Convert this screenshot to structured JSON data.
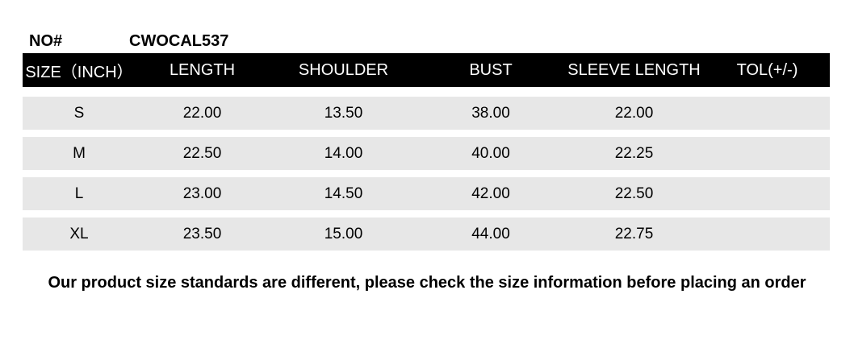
{
  "product": {
    "no_label": "NO#",
    "no_value": "CWOCAL537"
  },
  "table": {
    "columns": [
      "SIZE（INCH）",
      "LENGTH",
      "SHOULDER",
      "BUST",
      "SLEEVE LENGTH",
      "TOL(+/-)"
    ],
    "column_keys": [
      "size",
      "length",
      "shoulder",
      "bust",
      "sleeve_length",
      "tol"
    ],
    "rows": [
      {
        "size": "S",
        "length": "22.00",
        "shoulder": "13.50",
        "bust": "38.00",
        "sleeve_length": "22.00",
        "tol": ""
      },
      {
        "size": "M",
        "length": "22.50",
        "shoulder": "14.00",
        "bust": "40.00",
        "sleeve_length": "22.25",
        "tol": ""
      },
      {
        "size": "L",
        "length": "23.00",
        "shoulder": "14.50",
        "bust": "42.00",
        "sleeve_length": "22.50",
        "tol": ""
      },
      {
        "size": "XL",
        "length": "23.50",
        "shoulder": "15.00",
        "bust": "44.00",
        "sleeve_length": "22.75",
        "tol": ""
      }
    ]
  },
  "footer": {
    "note": "Our product size standards are different, please check the size information before placing an order"
  },
  "colors": {
    "header_bg": "#000000",
    "header_text": "#ffffff",
    "row_bg": "#e7e7e7",
    "text": "#000000"
  }
}
